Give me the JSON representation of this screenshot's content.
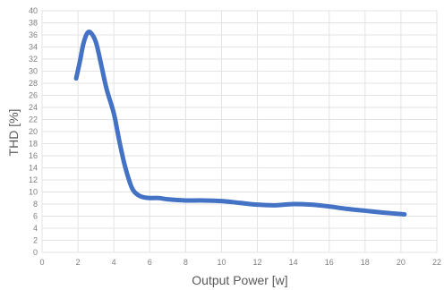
{
  "chart_data": {
    "type": "line",
    "xlabel": "Output Power [w]",
    "ylabel": "THD [%]",
    "xlim": [
      0,
      22
    ],
    "ylim": [
      0,
      40
    ],
    "xticks": [
      0,
      2,
      4,
      6,
      8,
      10,
      12,
      14,
      16,
      18,
      20,
      22
    ],
    "yticks": [
      0,
      2,
      4,
      6,
      8,
      10,
      12,
      14,
      16,
      18,
      20,
      22,
      24,
      26,
      28,
      30,
      32,
      34,
      36,
      38,
      40
    ],
    "grid": true,
    "series": [
      {
        "color": "#4472c4",
        "x": [
          1.9,
          2.1,
          2.3,
          2.5,
          2.7,
          3.0,
          3.3,
          3.6,
          4.0,
          4.3,
          4.6,
          4.9,
          5.1,
          5.4,
          5.7,
          6.0,
          6.5,
          7.0,
          8.0,
          9.0,
          10.0,
          11.0,
          12.0,
          13.0,
          14.0,
          15.0,
          16.0,
          17.0,
          18.0,
          19.0,
          20.2
        ],
        "y": [
          28.8,
          31.5,
          34.5,
          36.2,
          36.4,
          34.8,
          31.0,
          27.0,
          23.0,
          18.5,
          14.5,
          11.5,
          10.2,
          9.4,
          9.1,
          9.0,
          9.0,
          8.8,
          8.6,
          8.6,
          8.5,
          8.2,
          7.9,
          7.8,
          8.0,
          7.9,
          7.6,
          7.2,
          6.9,
          6.6,
          6.3
        ]
      }
    ]
  }
}
